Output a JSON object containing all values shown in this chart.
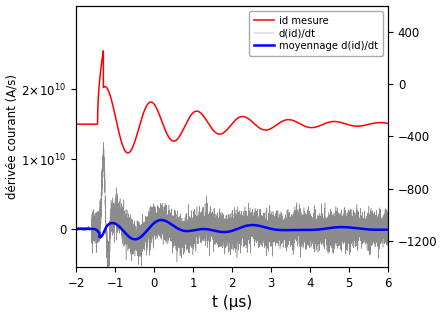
{
  "title": "",
  "xlabel": "t (μs)",
  "ylabel": "dérivée courant (A/s)",
  "xlim": [
    -2,
    6
  ],
  "ylim_left": [
    -5500000000.0,
    32000000000.0
  ],
  "ylim_right": [
    -1400,
    600
  ],
  "yticks_left": [
    0,
    10000000000.0,
    20000000000.0
  ],
  "yticks_right": [
    400,
    0,
    -400,
    -800,
    -1200
  ],
  "xticks": [
    -2,
    -1,
    0,
    1,
    2,
    3,
    4,
    5,
    6
  ],
  "legend_labels": [
    "id mesure",
    "d(id)/dt",
    "moyennage d(id)/dt"
  ],
  "legend_colors": [
    "red",
    "gray",
    "blue"
  ],
  "bg_color": "white",
  "red_baseline": 15000000000.0,
  "red_peak": 25500000000.0,
  "red_osc_amp": 5500000000.0,
  "red_osc_freq": 0.85,
  "red_osc_decay": 0.45,
  "black_spike_amp": 10000000000.0,
  "black_noise_amp": 1200000000.0,
  "black_osc_amp": 2500000000.0,
  "blue_osc_amp": 1800000000.0,
  "blue_osc_freq": 0.85,
  "blue_osc_decay": 0.55
}
